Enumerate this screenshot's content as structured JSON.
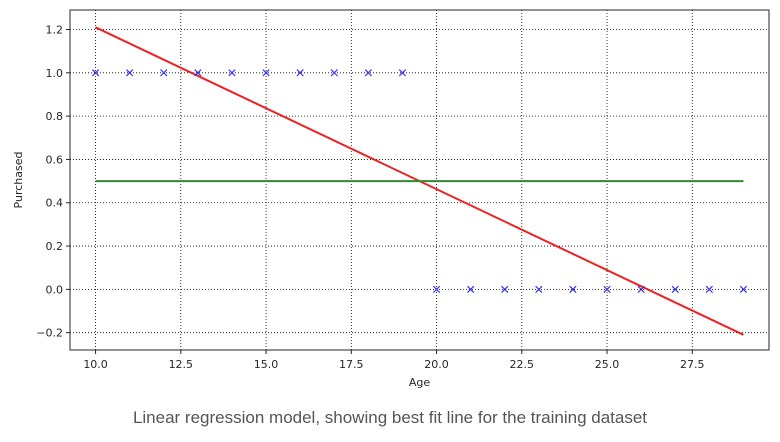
{
  "caption": "Linear regression model, showing best fit line for the training dataset",
  "chart_data": {
    "type": "scatter",
    "title": "",
    "xlabel": "Age",
    "ylabel": "Purchased",
    "xlim": [
      9.25,
      29.75
    ],
    "ylim": [
      -0.28,
      1.29
    ],
    "grid": true,
    "grid_style": "dotted",
    "xticks": [
      10.0,
      12.5,
      15.0,
      17.5,
      20.0,
      22.5,
      25.0,
      27.5
    ],
    "xtick_labels": [
      "10.0",
      "12.5",
      "15.0",
      "17.5",
      "20.0",
      "22.5",
      "25.0",
      "27.5"
    ],
    "yticks": [
      1.2,
      1.0,
      0.8,
      0.6,
      0.4,
      0.2,
      0.0,
      -0.2
    ],
    "ytick_labels": [
      "1.2",
      "1.0",
      "0.8",
      "0.6",
      "0.4",
      "0.2",
      "0.0",
      "−0.2"
    ],
    "points": {
      "marker": "x",
      "color": "#3333ee",
      "x": [
        10,
        11,
        12,
        13,
        14,
        15,
        16,
        17,
        18,
        19,
        20,
        21,
        22,
        23,
        24,
        25,
        26,
        27,
        28,
        29
      ],
      "y": [
        1,
        1,
        1,
        1,
        1,
        1,
        1,
        1,
        1,
        1,
        0,
        0,
        0,
        0,
        0,
        0,
        0,
        0,
        0,
        0
      ]
    },
    "lines": [
      {
        "color": "#ee2222",
        "x": [
          10,
          29
        ],
        "y": [
          1.21,
          -0.21
        ]
      },
      {
        "color": "#338833",
        "x": [
          10,
          29
        ],
        "y": [
          0.5,
          0.5
        ]
      }
    ]
  }
}
